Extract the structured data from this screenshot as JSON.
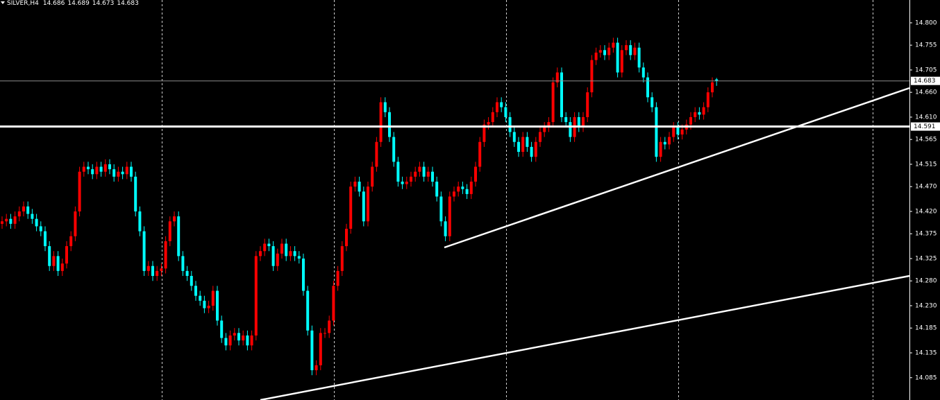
{
  "chart_data": {
    "type": "candlestick",
    "title": "SILVER,H4",
    "up_color": "#ff0000",
    "down_color": "#00ffff",
    "ylim": [
      14.04,
      14.846
    ],
    "yticks": [
      {
        "value": 14.8,
        "label": "14.800"
      },
      {
        "value": 14.755,
        "label": "14.755"
      },
      {
        "value": 14.705,
        "label": "14.705"
      },
      {
        "value": 14.66,
        "label": "14.660"
      },
      {
        "value": 14.61,
        "label": "14.610"
      },
      {
        "value": 14.565,
        "label": "14.565"
      },
      {
        "value": 14.515,
        "label": "14.515"
      },
      {
        "value": 14.47,
        "label": "14.470"
      },
      {
        "value": 14.42,
        "label": "14.420"
      },
      {
        "value": 14.375,
        "label": "14.375"
      },
      {
        "value": 14.325,
        "label": "14.325"
      },
      {
        "value": 14.28,
        "label": "14.280"
      },
      {
        "value": 14.23,
        "label": "14.230"
      },
      {
        "value": 14.185,
        "label": "14.185"
      },
      {
        "value": 14.135,
        "label": "14.135"
      },
      {
        "value": 14.085,
        "label": "14.085"
      }
    ],
    "hlines": [
      14.591
    ],
    "candles": [
      [
        14.395,
        14.41,
        14.385,
        14.4
      ],
      [
        14.4,
        14.415,
        14.39,
        14.405
      ],
      [
        14.405,
        14.415,
        14.385,
        14.395
      ],
      [
        14.395,
        14.42,
        14.385,
        14.41
      ],
      [
        14.41,
        14.43,
        14.4,
        14.42
      ],
      [
        14.42,
        14.44,
        14.41,
        14.43
      ],
      [
        14.43,
        14.44,
        14.405,
        14.415
      ],
      [
        14.415,
        14.425,
        14.395,
        14.405
      ],
      [
        14.405,
        14.415,
        14.38,
        14.39
      ],
      [
        14.39,
        14.4,
        14.37,
        14.38
      ],
      [
        14.38,
        14.39,
        14.34,
        14.35
      ],
      [
        14.35,
        14.36,
        14.3,
        14.31
      ],
      [
        14.31,
        14.34,
        14.3,
        14.33
      ],
      [
        14.33,
        14.34,
        14.29,
        14.3
      ],
      [
        14.3,
        14.325,
        14.29,
        14.315
      ],
      [
        14.315,
        14.36,
        14.305,
        14.35
      ],
      [
        14.35,
        14.38,
        14.34,
        14.37
      ],
      [
        14.37,
        14.43,
        14.36,
        14.42
      ],
      [
        14.42,
        14.51,
        14.41,
        14.5
      ],
      [
        14.5,
        14.52,
        14.49,
        14.51
      ],
      [
        14.51,
        14.52,
        14.495,
        14.505
      ],
      [
        14.505,
        14.515,
        14.485,
        14.495
      ],
      [
        14.495,
        14.52,
        14.485,
        14.51
      ],
      [
        14.51,
        14.52,
        14.49,
        14.5
      ],
      [
        14.5,
        14.525,
        14.49,
        14.515
      ],
      [
        14.515,
        14.525,
        14.495,
        14.505
      ],
      [
        14.505,
        14.515,
        14.48,
        14.49
      ],
      [
        14.49,
        14.51,
        14.48,
        14.5
      ],
      [
        14.5,
        14.51,
        14.485,
        14.495
      ],
      [
        14.495,
        14.52,
        14.485,
        14.51
      ],
      [
        14.51,
        14.52,
        14.48,
        14.49
      ],
      [
        14.49,
        14.5,
        14.41,
        14.42
      ],
      [
        14.42,
        14.43,
        14.37,
        14.38
      ],
      [
        14.38,
        14.39,
        14.29,
        14.3
      ],
      [
        14.3,
        14.32,
        14.29,
        14.31
      ],
      [
        14.31,
        14.32,
        14.28,
        14.29
      ],
      [
        14.29,
        14.31,
        14.28,
        14.3
      ],
      [
        14.3,
        14.315,
        14.29,
        14.305
      ],
      [
        14.305,
        14.37,
        14.295,
        14.36
      ],
      [
        14.36,
        14.41,
        14.35,
        14.4
      ],
      [
        14.4,
        14.42,
        14.39,
        14.41
      ],
      [
        14.41,
        14.42,
        14.32,
        14.33
      ],
      [
        14.33,
        14.34,
        14.29,
        14.3
      ],
      [
        14.3,
        14.31,
        14.28,
        14.29
      ],
      [
        14.29,
        14.3,
        14.26,
        14.27
      ],
      [
        14.27,
        14.28,
        14.24,
        14.25
      ],
      [
        14.25,
        14.26,
        14.23,
        14.24
      ],
      [
        14.24,
        14.25,
        14.215,
        14.225
      ],
      [
        14.225,
        14.24,
        14.215,
        14.23
      ],
      [
        14.23,
        14.27,
        14.22,
        14.26
      ],
      [
        14.26,
        14.27,
        14.19,
        14.2
      ],
      [
        14.2,
        14.21,
        14.155,
        14.165
      ],
      [
        14.165,
        14.175,
        14.14,
        14.15
      ],
      [
        14.15,
        14.18,
        14.14,
        14.17
      ],
      [
        14.17,
        14.185,
        14.16,
        14.175
      ],
      [
        14.175,
        14.185,
        14.15,
        14.16
      ],
      [
        14.16,
        14.18,
        14.15,
        14.17
      ],
      [
        14.17,
        14.18,
        14.14,
        14.15
      ],
      [
        14.15,
        14.18,
        14.14,
        14.17
      ],
      [
        14.17,
        14.34,
        14.16,
        14.33
      ],
      [
        14.33,
        14.35,
        14.32,
        14.34
      ],
      [
        14.34,
        14.365,
        14.33,
        14.355
      ],
      [
        14.355,
        14.365,
        14.34,
        14.35
      ],
      [
        14.35,
        14.36,
        14.3,
        14.31
      ],
      [
        14.31,
        14.345,
        14.3,
        14.335
      ],
      [
        14.335,
        14.365,
        14.325,
        14.355
      ],
      [
        14.355,
        14.365,
        14.32,
        14.33
      ],
      [
        14.33,
        14.35,
        14.32,
        14.34
      ],
      [
        14.34,
        14.35,
        14.32,
        14.33
      ],
      [
        14.33,
        14.34,
        14.315,
        14.325
      ],
      [
        14.325,
        14.335,
        14.25,
        14.26
      ],
      [
        14.26,
        14.27,
        14.17,
        14.18
      ],
      [
        14.18,
        14.19,
        14.09,
        14.1
      ],
      [
        14.1,
        14.12,
        14.09,
        14.11
      ],
      [
        14.11,
        14.185,
        14.1,
        14.175
      ],
      [
        14.175,
        14.185,
        14.165,
        14.175
      ],
      [
        14.175,
        14.21,
        14.165,
        14.2
      ],
      [
        14.2,
        14.28,
        14.19,
        14.27
      ],
      [
        14.27,
        14.31,
        14.26,
        14.3
      ],
      [
        14.3,
        14.36,
        14.29,
        14.35
      ],
      [
        14.35,
        14.395,
        14.34,
        14.385
      ],
      [
        14.385,
        14.48,
        14.375,
        14.47
      ],
      [
        14.47,
        14.49,
        14.46,
        14.48
      ],
      [
        14.48,
        14.49,
        14.45,
        14.46
      ],
      [
        14.46,
        14.47,
        14.39,
        14.4
      ],
      [
        14.4,
        14.48,
        14.39,
        14.47
      ],
      [
        14.47,
        14.52,
        14.46,
        14.51
      ],
      [
        14.51,
        14.57,
        14.5,
        14.56
      ],
      [
        14.56,
        14.65,
        14.55,
        14.64
      ],
      [
        14.64,
        14.65,
        14.61,
        14.62
      ],
      [
        14.62,
        14.63,
        14.56,
        14.57
      ],
      [
        14.57,
        14.58,
        14.51,
        14.52
      ],
      [
        14.52,
        14.53,
        14.47,
        14.48
      ],
      [
        14.48,
        14.49,
        14.465,
        14.475
      ],
      [
        14.475,
        14.49,
        14.465,
        14.48
      ],
      [
        14.48,
        14.5,
        14.47,
        14.49
      ],
      [
        14.49,
        14.51,
        14.48,
        14.5
      ],
      [
        14.5,
        14.52,
        14.49,
        14.51
      ],
      [
        14.51,
        14.52,
        14.48,
        14.49
      ],
      [
        14.49,
        14.51,
        14.48,
        14.5
      ],
      [
        14.5,
        14.51,
        14.47,
        14.48
      ],
      [
        14.48,
        14.49,
        14.44,
        14.45
      ],
      [
        14.45,
        14.46,
        14.39,
        14.4
      ],
      [
        14.4,
        14.41,
        14.36,
        14.37
      ],
      [
        14.37,
        14.46,
        14.36,
        14.45
      ],
      [
        14.45,
        14.47,
        14.44,
        14.46
      ],
      [
        14.46,
        14.48,
        14.45,
        14.47
      ],
      [
        14.47,
        14.48,
        14.455,
        14.465
      ],
      [
        14.465,
        14.475,
        14.445,
        14.455
      ],
      [
        14.455,
        14.49,
        14.445,
        14.48
      ],
      [
        14.48,
        14.52,
        14.47,
        14.51
      ],
      [
        14.51,
        14.57,
        14.5,
        14.56
      ],
      [
        14.56,
        14.605,
        14.55,
        14.595
      ],
      [
        14.595,
        14.61,
        14.585,
        14.6
      ],
      [
        14.6,
        14.63,
        14.59,
        14.62
      ],
      [
        14.62,
        14.65,
        14.61,
        14.64
      ],
      [
        14.64,
        14.65,
        14.62,
        14.63
      ],
      [
        14.63,
        14.64,
        14.6,
        14.61
      ],
      [
        14.61,
        14.62,
        14.57,
        14.58
      ],
      [
        14.58,
        14.59,
        14.55,
        14.56
      ],
      [
        14.56,
        14.57,
        14.53,
        14.54
      ],
      [
        14.54,
        14.58,
        14.53,
        14.57
      ],
      [
        14.57,
        14.58,
        14.54,
        14.55
      ],
      [
        14.55,
        14.56,
        14.52,
        14.53
      ],
      [
        14.53,
        14.57,
        14.52,
        14.56
      ],
      [
        14.56,
        14.59,
        14.55,
        14.58
      ],
      [
        14.58,
        14.6,
        14.57,
        14.59
      ],
      [
        14.59,
        14.61,
        14.58,
        14.6
      ],
      [
        14.6,
        14.69,
        14.59,
        14.68
      ],
      [
        14.68,
        14.71,
        14.67,
        14.7
      ],
      [
        14.7,
        14.71,
        14.6,
        14.61
      ],
      [
        14.61,
        14.62,
        14.59,
        14.6
      ],
      [
        14.6,
        14.61,
        14.56,
        14.57
      ],
      [
        14.57,
        14.62,
        14.56,
        14.61
      ],
      [
        14.61,
        14.62,
        14.58,
        14.59
      ],
      [
        14.59,
        14.62,
        14.58,
        14.61
      ],
      [
        14.61,
        14.67,
        14.6,
        14.66
      ],
      [
        14.66,
        14.735,
        14.65,
        14.725
      ],
      [
        14.725,
        14.75,
        14.715,
        14.74
      ],
      [
        14.74,
        14.755,
        14.73,
        14.745
      ],
      [
        14.745,
        14.755,
        14.725,
        14.735
      ],
      [
        14.735,
        14.76,
        14.725,
        14.75
      ],
      [
        14.75,
        14.77,
        14.74,
        14.76
      ],
      [
        14.76,
        14.77,
        14.69,
        14.7
      ],
      [
        14.7,
        14.755,
        14.69,
        14.745
      ],
      [
        14.745,
        14.765,
        14.735,
        14.755
      ],
      [
        14.755,
        14.765,
        14.725,
        14.735
      ],
      [
        14.735,
        14.76,
        14.725,
        14.75
      ],
      [
        14.75,
        14.76,
        14.7,
        14.71
      ],
      [
        14.71,
        14.72,
        14.68,
        14.69
      ],
      [
        14.69,
        14.7,
        14.64,
        14.65
      ],
      [
        14.65,
        14.66,
        14.62,
        14.63
      ],
      [
        14.63,
        14.64,
        14.52,
        14.53
      ],
      [
        14.53,
        14.57,
        14.52,
        14.56
      ],
      [
        14.56,
        14.57,
        14.545,
        14.555
      ],
      [
        14.555,
        14.58,
        14.545,
        14.57
      ],
      [
        14.57,
        14.6,
        14.56,
        14.59
      ],
      [
        14.59,
        14.6,
        14.565,
        14.575
      ],
      [
        14.575,
        14.595,
        14.565,
        14.585
      ],
      [
        14.585,
        14.605,
        14.575,
        14.595
      ],
      [
        14.595,
        14.62,
        14.585,
        14.61
      ],
      [
        14.61,
        14.63,
        14.6,
        14.62
      ],
      [
        14.62,
        14.63,
        14.605,
        14.615
      ],
      [
        14.615,
        14.64,
        14.605,
        14.63
      ],
      [
        14.63,
        14.67,
        14.62,
        14.66
      ],
      [
        14.66,
        14.69,
        14.65,
        14.68
      ],
      [
        14.686,
        14.689,
        14.673,
        14.683
      ]
    ]
  }
}
